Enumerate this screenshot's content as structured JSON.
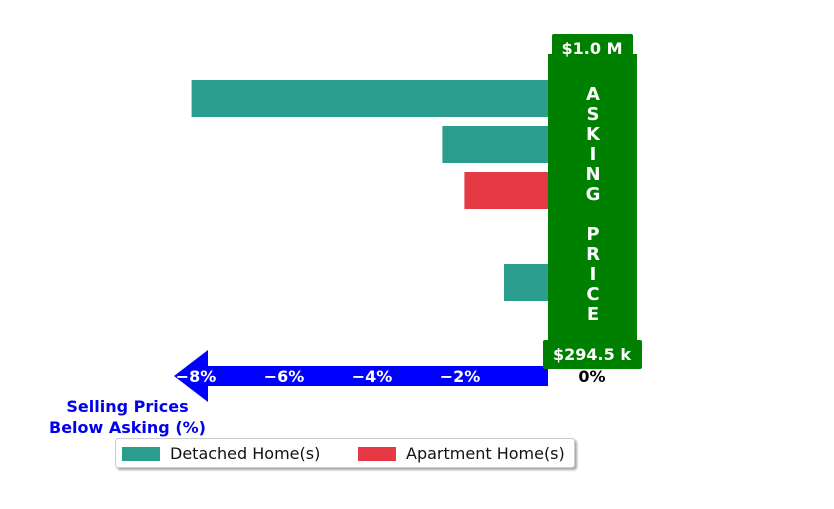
{
  "colors": {
    "detached": "#2a9d8f",
    "apartment": "#e63946",
    "asking_box": "#008000",
    "axis_arrow": "#0000ff",
    "axis_text": "#0000ee"
  },
  "chart_data": {
    "type": "bar",
    "orientation": "horizontal",
    "xlabel_lines": [
      "Selling Prices",
      "Below Asking (%)"
    ],
    "xlim": [
      -9,
      2
    ],
    "xticks": [
      {
        "value": -8,
        "label": "−8%"
      },
      {
        "value": -6,
        "label": "−6%"
      },
      {
        "value": -4,
        "label": "−4%"
      },
      {
        "value": -2,
        "label": "−2%"
      },
      {
        "value": 0,
        "label": "0%"
      }
    ],
    "bars": [
      {
        "series": "detached",
        "value": -8.1
      },
      {
        "series": "detached",
        "value": -2.4
      },
      {
        "series": "apartment",
        "value": -1.9
      },
      {
        "series": "detached",
        "value": 0.2
      },
      {
        "series": "detached",
        "value": -1.0
      },
      {
        "series": "detached",
        "value": 0.2
      }
    ],
    "asking_price_box": {
      "vertical_text": "ASKING  PRICE",
      "top_label": "$1.0 M",
      "bottom_label": "$294.5 k"
    },
    "legend": [
      {
        "series": "detached",
        "label": "Detached Home(s)"
      },
      {
        "series": "apartment",
        "label": "Apartment Home(s)"
      }
    ],
    "legend_position": "bottom-center"
  }
}
